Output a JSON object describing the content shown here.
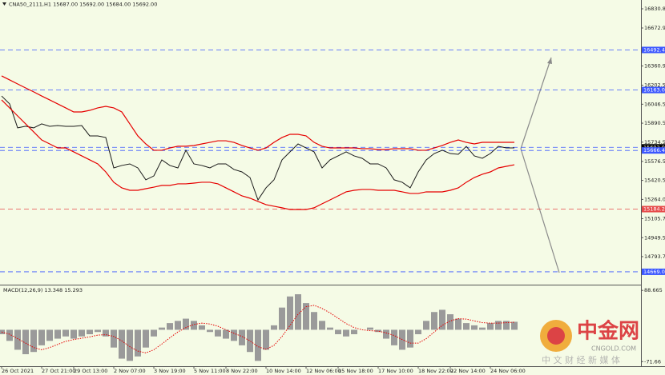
{
  "chart_data": {
    "type": "line",
    "title": "CNA50_2111,H1  15687.00 15692.00 15684.00 15692.00",
    "x": [
      "26 Oct 2021",
      null,
      null,
      null,
      null,
      "27 Oct 21:00",
      null,
      null,
      null,
      "29 Oct 13:00",
      null,
      null,
      null,
      null,
      "2 Nov 07:00",
      null,
      null,
      null,
      null,
      "3 Nov 19:00",
      null,
      null,
      null,
      null,
      "5 Nov 11:00",
      null,
      null,
      null,
      "8 Nov 22:00",
      null,
      null,
      null,
      null,
      "10 Nov 14:00",
      null,
      null,
      null,
      null,
      "12 Nov 06:00",
      null,
      null,
      null,
      "15 Nov 18:00",
      null,
      null,
      null,
      null,
      "17 Nov 10:00",
      null,
      null,
      null,
      null,
      "18 Nov 22:00",
      null,
      null,
      null,
      "22 Nov 14:00",
      null,
      null,
      null,
      null,
      "24 Nov 06:00",
      null,
      null,
      null
    ],
    "series": [
      {
        "name": "Close",
        "color": "#1a1a1a",
        "values": [
          16114,
          16049,
          15852,
          15865,
          15852,
          15885,
          15865,
          15871,
          15865,
          15865,
          15871,
          15786,
          15786,
          15773,
          15523,
          15543,
          15556,
          15523,
          15425,
          15457,
          15589,
          15543,
          15523,
          15668,
          15556,
          15543,
          15523,
          15556,
          15556,
          15510,
          15490,
          15444,
          15260,
          15359,
          15425,
          15589,
          15655,
          15720,
          15687,
          15655,
          15523,
          15589,
          15622,
          15655,
          15622,
          15602,
          15556,
          15556,
          15523,
          15425,
          15405,
          15359,
          15490,
          15589,
          15641,
          15668,
          15641,
          15635,
          15700,
          15622,
          15602,
          15641,
          15700,
          15687,
          15687
        ]
      },
      {
        "name": "Upper",
        "color": "#e60000",
        "values": [
          16279,
          16246,
          16213,
          16180,
          16148,
          16114,
          16082,
          16049,
          16016,
          15983,
          15983,
          15996,
          16016,
          16029,
          16016,
          15983,
          15885,
          15786,
          15720,
          15668,
          15668,
          15687,
          15701,
          15701,
          15707,
          15720,
          15733,
          15746,
          15746,
          15733,
          15707,
          15687,
          15668,
          15687,
          15733,
          15773,
          15799,
          15799,
          15786,
          15733,
          15701,
          15687,
          15687,
          15687,
          15687,
          15681,
          15681,
          15674,
          15674,
          15681,
          15681,
          15681,
          15668,
          15668,
          15687,
          15707,
          15733,
          15753,
          15733,
          15720,
          15733,
          15733,
          15733,
          15733,
          15733
        ]
      },
      {
        "name": "Lower",
        "color": "#e60000",
        "values": [
          16082,
          16016,
          15950,
          15885,
          15819,
          15753,
          15720,
          15687,
          15687,
          15655,
          15622,
          15589,
          15556,
          15490,
          15405,
          15359,
          15339,
          15339,
          15352,
          15365,
          15379,
          15379,
          15392,
          15392,
          15398,
          15405,
          15405,
          15392,
          15359,
          15326,
          15293,
          15274,
          15247,
          15221,
          15208,
          15195,
          15181,
          15181,
          15181,
          15195,
          15228,
          15260,
          15293,
          15326,
          15339,
          15346,
          15346,
          15339,
          15339,
          15339,
          15326,
          15313,
          15313,
          15326,
          15326,
          15326,
          15339,
          15359,
          15405,
          15444,
          15471,
          15490,
          15523,
          15536,
          15549
        ]
      }
    ],
    "ylim": [
      14570,
      16903
    ],
    "yticks": [
      {
        "value": 16830.8,
        "label": "16830.80"
      },
      {
        "value": 16672.9,
        "label": "16672.90"
      },
      {
        "value": 16360.9,
        "label": "16360.90"
      },
      {
        "value": 16202.5,
        "label": "16202.50"
      },
      {
        "value": 16046.5,
        "label": "16046.50"
      },
      {
        "value": 15890.5,
        "label": "15890.50"
      },
      {
        "value": 15734.5,
        "label": "15734.50"
      },
      {
        "value": 15576.5,
        "label": "15576.50"
      },
      {
        "value": 15420.5,
        "label": "15420.50"
      },
      {
        "value": 15264,
        "label": "15264.00"
      },
      {
        "value": 15105.7,
        "label": "15105.70"
      },
      {
        "value": 14949.5,
        "label": "14949.50"
      },
      {
        "value": 14793.7,
        "label": "14793.70"
      }
    ],
    "levels": [
      {
        "value": 16492.48,
        "label": "16492.48"
      },
      {
        "value": 16163,
        "label": "16163.00"
      },
      {
        "value": 15692,
        "label": "15692.00"
      },
      {
        "value": 15666.41,
        "label": "15666.41"
      },
      {
        "value": 15184.26,
        "label": "15184.26"
      },
      {
        "value": 14669.06,
        "label": "14669.06"
      }
    ],
    "level_colors": [
      "#3b57ff",
      "#3b57ff",
      "#000000",
      "#3b57ff",
      "#e64a4a",
      "#3b57ff"
    ],
    "macd": {
      "label": "MACD(12,26,9) 13.348 15.293",
      "ylim": [
        -82,
        98
      ],
      "yticks": [
        {
          "value": 88.665,
          "label": "88.665"
        },
        {
          "value": -71.66,
          "label": "-71.66"
        }
      ],
      "histogram": {
        "name": "MACD",
        "color": "#9a9a9a",
        "values": [
          -10,
          -25,
          -45,
          -55,
          -50,
          -35,
          -25,
          -20,
          -15,
          -20,
          -15,
          -10,
          -5,
          -15,
          -40,
          -65,
          -70,
          -60,
          -40,
          -15,
          5,
          15,
          20,
          25,
          20,
          10,
          -5,
          -15,
          -20,
          -25,
          -35,
          -50,
          -70,
          -45,
          10,
          50,
          75,
          80,
          60,
          40,
          20,
          5,
          -10,
          -15,
          -10,
          0,
          5,
          -5,
          -20,
          -35,
          -45,
          -40,
          -10,
          20,
          40,
          45,
          35,
          25,
          15,
          10,
          5,
          15,
          20,
          20,
          18
        ]
      },
      "signal": {
        "name": "Signal",
        "color": "#e60000",
        "values": [
          -5,
          -10,
          -20,
          -30,
          -40,
          -45,
          -40,
          -33,
          -26,
          -22,
          -19,
          -16,
          -12,
          -11,
          -15,
          -25,
          -38,
          -48,
          -52,
          -45,
          -32,
          -18,
          -5,
          5,
          12,
          15,
          13,
          8,
          0,
          -8,
          -15,
          -25,
          -38,
          -44,
          -35,
          -15,
          10,
          35,
          52,
          55,
          48,
          38,
          26,
          14,
          5,
          0,
          -2,
          -3,
          -7,
          -13,
          -22,
          -30,
          -30,
          -20,
          -5,
          10,
          20,
          25,
          24,
          20,
          16,
          15,
          15,
          16,
          17
        ]
      }
    }
  },
  "watermark": {
    "brand": "中金网",
    "site": "CNGOLD.COM",
    "slogan": "中 文 财 经 新 媒 体"
  }
}
